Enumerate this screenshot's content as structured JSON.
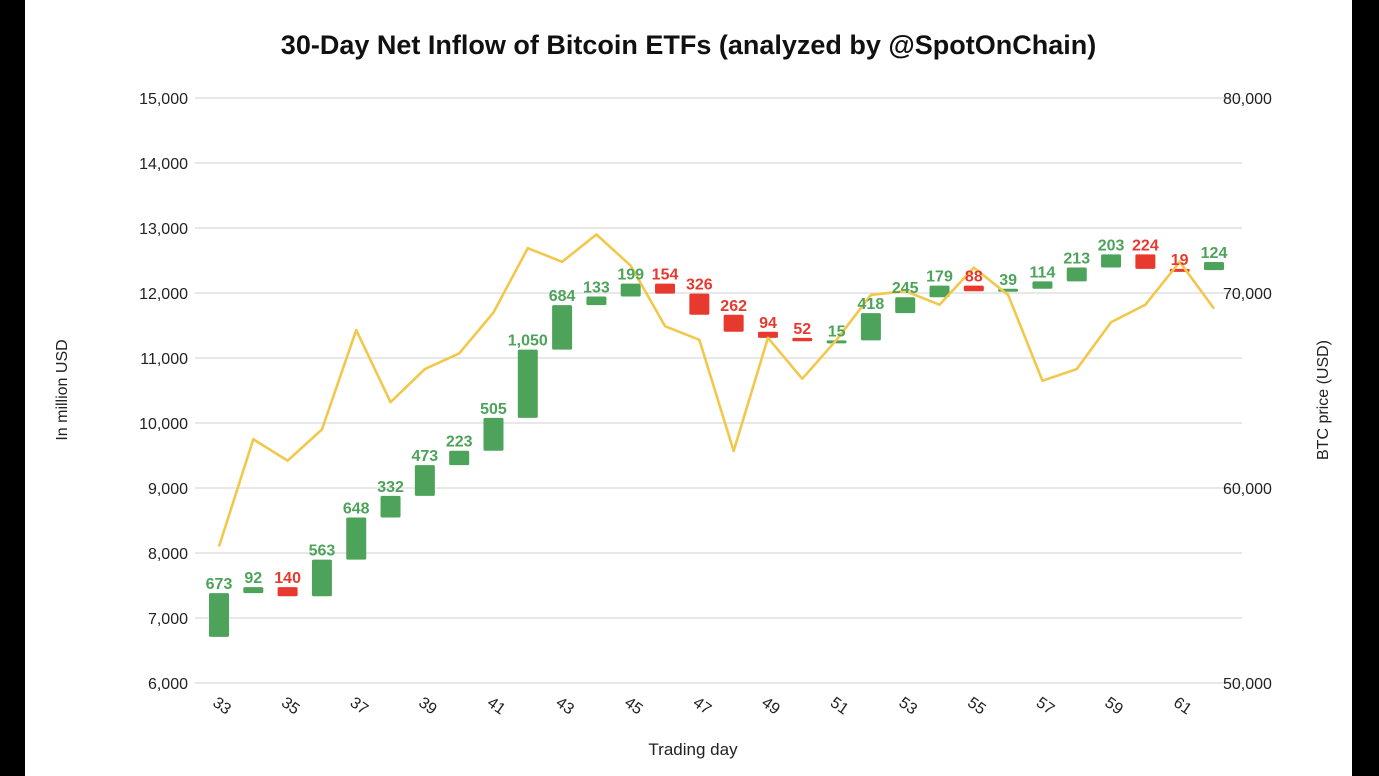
{
  "chart_data": {
    "type": "waterfall",
    "title": "30-Day Net Inflow of Bitcoin ETFs (analyzed by @SpotOnChain)",
    "xlabel": "Trading day",
    "ylabel": "In million USD",
    "y2label": "BTC price (USD)",
    "ylim": [
      6000,
      15000
    ],
    "y2lim": [
      50000,
      80000
    ],
    "yticks": [
      "6,000",
      "7,000",
      "8,000",
      "9,000",
      "10,000",
      "11,000",
      "12,000",
      "13,000",
      "14,000",
      "15,000"
    ],
    "y2ticks": [
      "50,000",
      "60,000",
      "70,000",
      "80,000"
    ],
    "xticks": [
      "33",
      "35",
      "37",
      "39",
      "41",
      "43",
      "45",
      "47",
      "49",
      "51",
      "53",
      "55",
      "57",
      "59",
      "61"
    ],
    "grid": true,
    "colors": {
      "increase": "#4ea35a",
      "decrease": "#e8392f",
      "price_line": "#f2c84b"
    },
    "start_value": 6710,
    "days": [
      33,
      34,
      35,
      36,
      37,
      38,
      39,
      40,
      41,
      42,
      43,
      44,
      45,
      46,
      47,
      48,
      49,
      50,
      51,
      52,
      53,
      54,
      55,
      56,
      57,
      58,
      59,
      60,
      61,
      62
    ],
    "flows": [
      673,
      92,
      -140,
      563,
      648,
      332,
      473,
      223,
      505,
      1050,
      684,
      133,
      199,
      -154,
      -326,
      -262,
      -94,
      -52,
      15,
      418,
      245,
      179,
      -88,
      39,
      114,
      213,
      203,
      -224,
      -19,
      124
    ],
    "labels": [
      "673",
      "92",
      "140",
      "563",
      "648",
      "332",
      "473",
      "223",
      "505",
      "1,050",
      "684",
      "133",
      "199",
      "154",
      "326",
      "262",
      "94",
      "52",
      "15",
      "418",
      "245",
      "179",
      "88",
      "39",
      "114",
      "213",
      "203",
      "224",
      "19",
      "124"
    ],
    "btc_price": [
      57000,
      62500,
      61400,
      63000,
      68100,
      64400,
      66100,
      66900,
      69000,
      72300,
      71600,
      73000,
      71400,
      68300,
      67600,
      61900,
      67700,
      65600,
      67600,
      69900,
      70100,
      69400,
      71300,
      69900,
      65500,
      66100,
      68500,
      69400,
      71600,
      69200
    ]
  }
}
